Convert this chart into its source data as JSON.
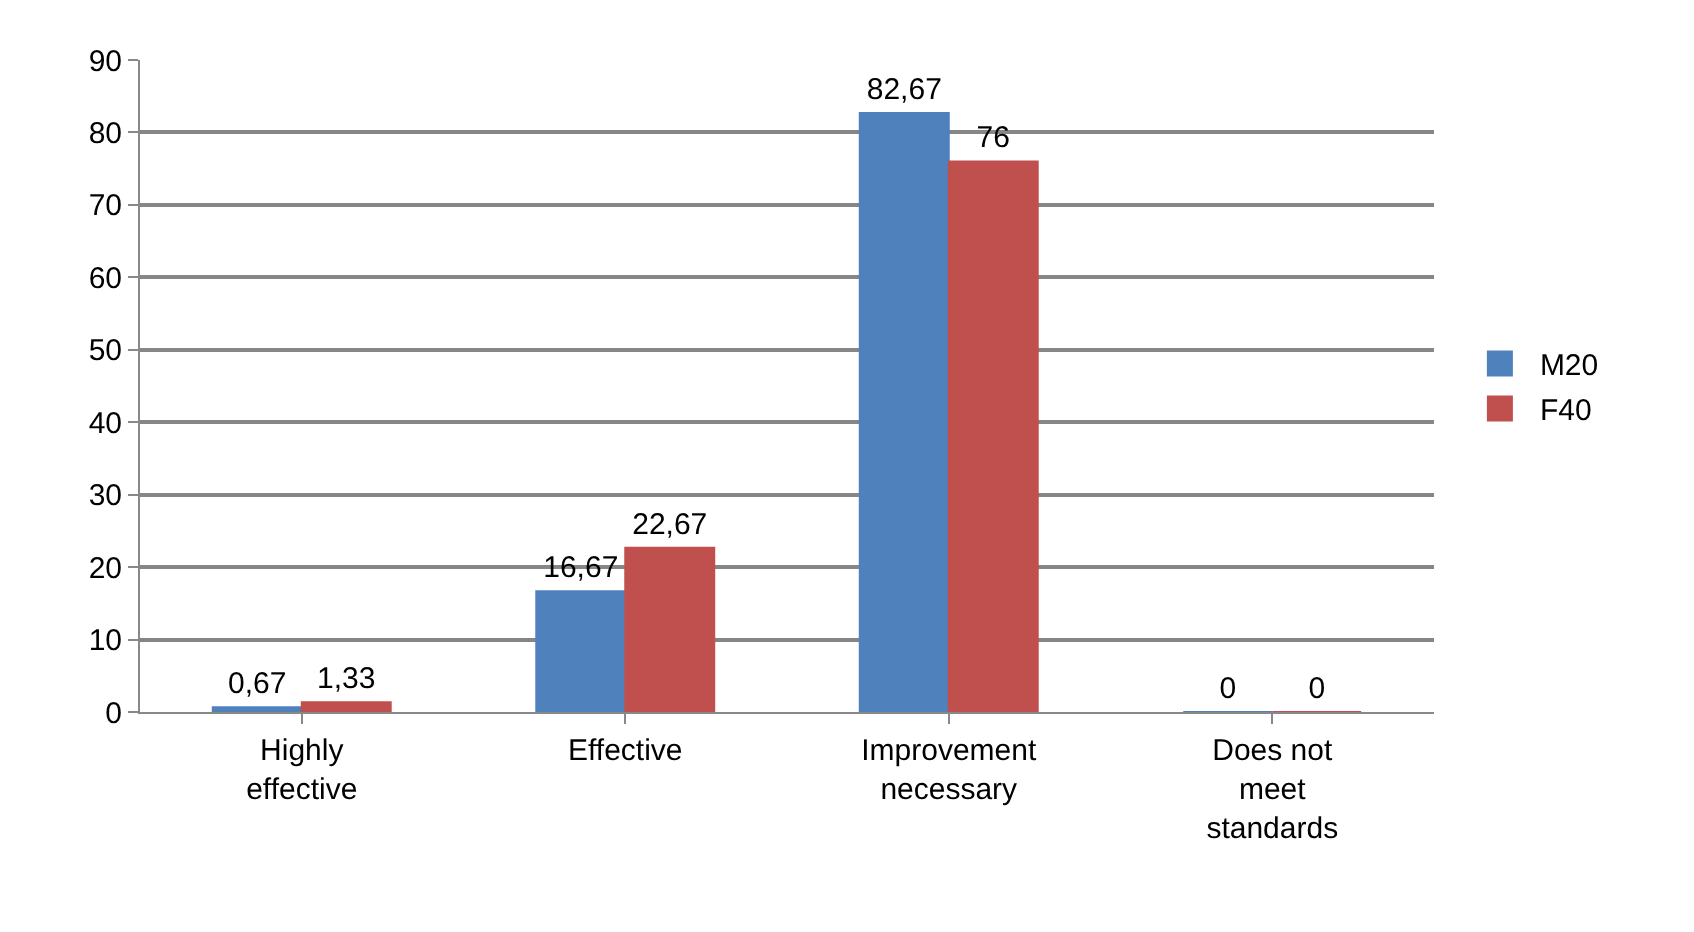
{
  "chart_data": {
    "type": "bar",
    "categories": [
      "Highly effective",
      "Effective",
      "Improvement necessary",
      "Does not meet standards"
    ],
    "series": [
      {
        "name": "M20",
        "color": "#4f81bd",
        "values": [
          0.67,
          16.67,
          82.67,
          0
        ],
        "value_labels": [
          "0,67",
          "16,67",
          "82,67",
          "0"
        ]
      },
      {
        "name": "F40",
        "color": "#c0504d",
        "values": [
          1.33,
          22.67,
          76,
          0
        ],
        "value_labels": [
          "1,33",
          "22,67",
          "76",
          "0"
        ]
      }
    ],
    "ylim": [
      0,
      90
    ],
    "yticks": [
      0,
      10,
      20,
      30,
      40,
      50,
      60,
      70,
      80,
      90
    ],
    "grid": "y",
    "legend": "right"
  }
}
